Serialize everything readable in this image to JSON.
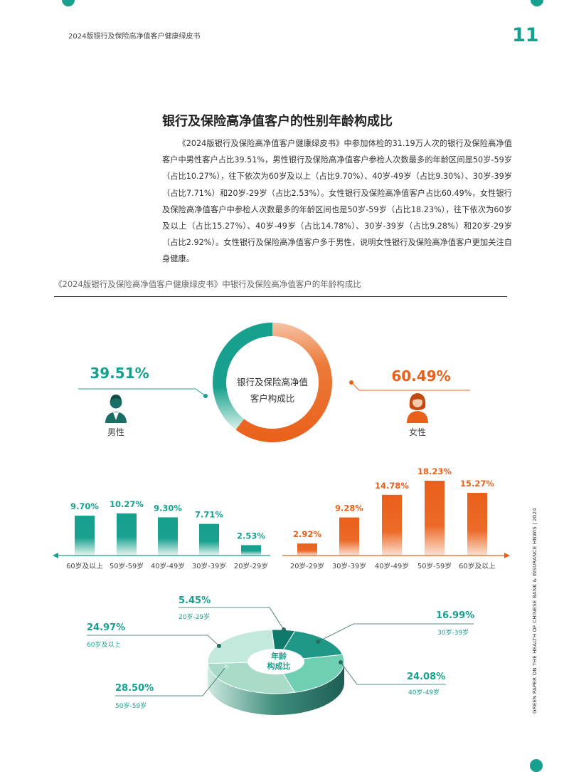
{
  "header": {
    "doc_title": "2024版银行及保险高净值客户健康绿皮书",
    "page_number": "11"
  },
  "section": {
    "title": "银行及保险高净值客户的性别年龄构成比",
    "paragraph": "《2024版银行及保险高净值客户健康绿皮书》中参加体检的31.19万人次的银行及保险高净值客户中男性客户占比39.51%，男性银行及保险高净值客户参检人次数最多的年龄区间是50岁-59岁（占比10.27%），往下依次为60岁及以上（占比9.70%）、40岁-49岁（占比9.30%）、30岁-39岁（占比7.71%）和20岁-29岁（占比2.53%）。女性银行及保险高净值客户占比60.49%，女性银行及保险高净值客户中参检人次数最多的年龄区间也是50岁-59岁（占比18.23%），往下依次为60岁及以上（占比15.27%）、40岁-49岁（占比14.78%）、30岁-39岁（占比9.28%）和20岁-29岁（占比2.92%）。女性银行及保险高净值客户多于男性，说明女性银行及保险高净值客户更加关注自身健康。"
  },
  "figure": {
    "caption": "《2024版银行及保险高净值客户健康绿皮书》中银行及保险高净值客户的年龄构成比"
  },
  "side_text": "GREEN PAPER ON THE HEALTH OF CHINESE BANK & INSURANCE HNWIS | 2024",
  "colors": {
    "teal": "#17a08e",
    "orange": "#e9601a",
    "dark": "#2b6b62"
  },
  "icons": {
    "male": "man-icon",
    "female": "woman-icon"
  },
  "chart_data": [
    {
      "type": "pie",
      "variant": "donut",
      "center_label": [
        "银行及保险高净值",
        "客户构成比"
      ],
      "categories": [
        "男性",
        "女性"
      ],
      "values": [
        39.51,
        60.49
      ],
      "value_labels": [
        "39.51%",
        "60.49%"
      ]
    },
    {
      "type": "bar",
      "name": "男性",
      "categories": [
        "60岁及以上",
        "50岁-59岁",
        "40岁-49岁",
        "30岁-39岁",
        "20岁-29岁"
      ],
      "values": [
        9.7,
        10.27,
        9.3,
        7.71,
        2.53
      ],
      "value_labels": [
        "9.70%",
        "10.27%",
        "9.30%",
        "7.71%",
        "2.53%"
      ],
      "ylim": [
        0,
        20
      ]
    },
    {
      "type": "bar",
      "name": "女性",
      "categories": [
        "20岁-29岁",
        "30岁-39岁",
        "40岁-49岁",
        "50岁-59岁",
        "60岁及以上"
      ],
      "values": [
        2.92,
        9.28,
        14.78,
        18.23,
        15.27
      ],
      "value_labels": [
        "2.92%",
        "9.28%",
        "14.78%",
        "18.23%",
        "15.27%"
      ],
      "ylim": [
        0,
        20
      ]
    },
    {
      "type": "pie",
      "variant": "3d-donut",
      "center_label": [
        "年龄",
        "构成比"
      ],
      "categories": [
        "20岁-29岁",
        "30岁-39岁",
        "40岁-49岁",
        "50岁-59岁",
        "60岁及以上"
      ],
      "values": [
        5.45,
        16.99,
        24.08,
        28.5,
        24.97
      ],
      "value_labels": [
        "5.45%",
        "16.99%",
        "24.08%",
        "28.50%",
        "24.97%"
      ],
      "colors": [
        "#0d7a6c",
        "#1f9888",
        "#6fcfb2",
        "#a8dcc8",
        "#c3e8dc"
      ]
    }
  ]
}
